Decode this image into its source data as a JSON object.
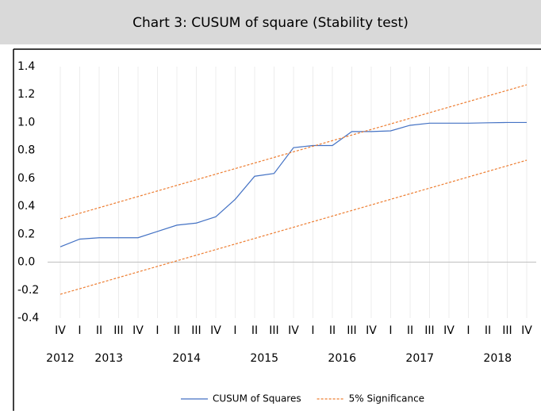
{
  "chart_data": {
    "type": "line",
    "title": "Chart 3: CUSUM of square (Stability test)",
    "categories": [
      "IV",
      "I",
      "II",
      "III",
      "IV",
      "I",
      "II",
      "III",
      "IV",
      "I",
      "II",
      "III",
      "IV",
      "I",
      "II",
      "III",
      "IV",
      "I",
      "II",
      "III",
      "IV",
      "I",
      "II",
      "III",
      "IV"
    ],
    "years": [
      "2012",
      "2013",
      "2014",
      "2015",
      "2016",
      "2017",
      "2018"
    ],
    "series": [
      {
        "name": "CUSUM of Squares",
        "color": "#4472c4",
        "dash": false,
        "values": [
          0.11,
          0.165,
          0.175,
          0.175,
          0.175,
          0.22,
          0.265,
          0.28,
          0.325,
          0.45,
          0.615,
          0.635,
          0.82,
          0.835,
          0.835,
          0.935,
          0.935,
          0.94,
          0.98,
          0.995,
          0.995,
          0.995,
          0.998,
          1.0,
          1.0
        ]
      },
      {
        "name": "5% Significance",
        "color": "#ed7d31",
        "dash": true,
        "values": [
          0.31,
          0.35,
          0.39,
          0.43,
          0.47,
          0.51,
          0.55,
          0.59,
          0.63,
          0.67,
          0.71,
          0.75,
          0.79,
          0.83,
          0.87,
          0.91,
          0.95,
          0.99,
          1.03,
          1.07,
          1.11,
          1.15,
          1.19,
          1.23,
          1.27
        ]
      },
      {
        "color": "#ed7d31",
        "dash": true,
        "values": [
          -0.23,
          -0.19,
          -0.15,
          -0.11,
          -0.07,
          -0.03,
          0.01,
          0.05,
          0.09,
          0.13,
          0.17,
          0.21,
          0.25,
          0.29,
          0.33,
          0.37,
          0.41,
          0.45,
          0.49,
          0.53,
          0.57,
          0.61,
          0.65,
          0.69,
          0.73
        ]
      }
    ],
    "ylim": [
      -0.4,
      1.4
    ],
    "yticks": [
      -0.4,
      -0.2,
      {
        "value": 0,
        "label": "0.0"
      },
      0.2,
      0.4,
      0.6,
      0.8,
      {
        "value": 1,
        "label": "1.0"
      },
      1.2,
      1.4
    ],
    "grid": true
  }
}
